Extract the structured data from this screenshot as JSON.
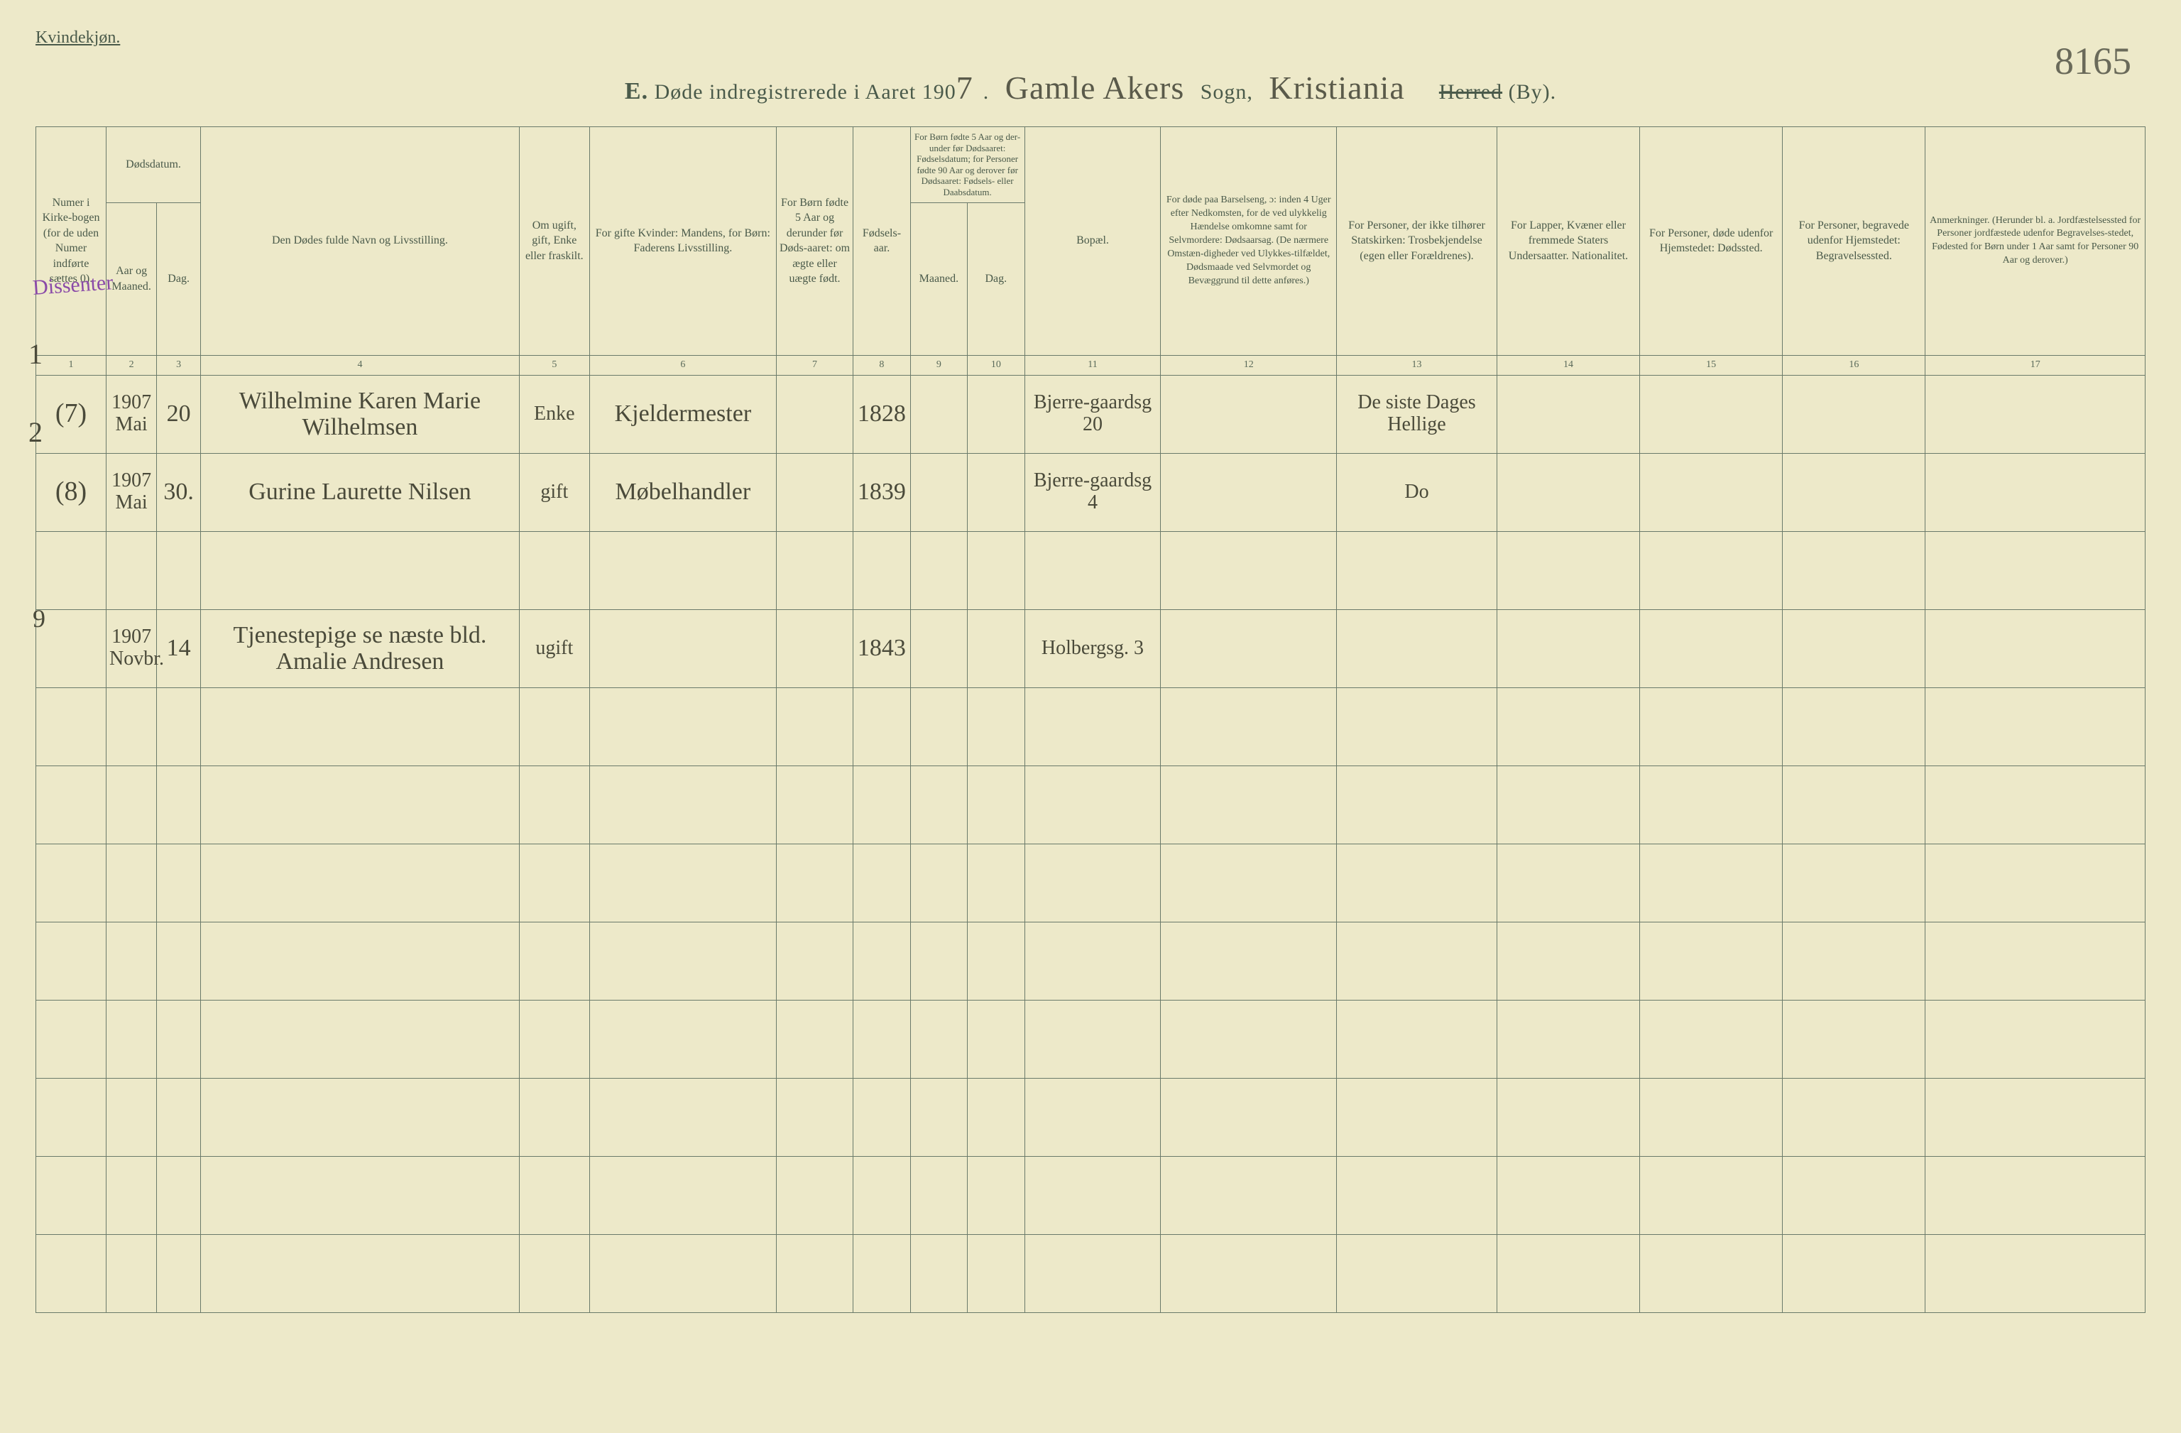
{
  "background_color": "#ede9c9",
  "ink_color": "#4a5a4a",
  "cursive_color": "#4a4a3a",
  "purple_color": "#8a4aa8",
  "top_label": "Kvindekjøn.",
  "page_number": "8165",
  "header": {
    "prefix_E": "E.",
    "title_before_year": "Døde indregistrerede i Aaret 190",
    "year_digit": "7",
    "sogn_value": "Gamle Akers",
    "sogn_label": "Sogn,",
    "herred_value": "Kristiania",
    "herred_struck": "Herred",
    "by_label": "(By)."
  },
  "margin": {
    "dissenter": "Dissenter",
    "r1": "1",
    "r2": "2",
    "r3": "9"
  },
  "columns": {
    "h1": "Numer i Kirke-bogen (for de uden Numer indførte sættes 0).",
    "h2a": "Dødsdatum.",
    "h2b": "Aar og Maaned.",
    "h3": "Dag.",
    "h4": "Den Dødes fulde Navn og Livsstilling.",
    "h5": "Om ugift, gift, Enke eller fraskilt.",
    "h6": "For gifte Kvinder: Mandens, for Børn: Faderens Livsstilling.",
    "h7": "For Børn fødte 5 Aar og derunder før Døds-aaret: om ægte eller uægte født.",
    "h8": "Fødsels-aar.",
    "h9_top": "For Børn fødte 5 Aar og der-under før Dødsaaret: Fødselsdatum; for Personer fødte 90 Aar og derover før Dødsaaret: Fødsels- eller Daabsdatum.",
    "h9": "Maaned.",
    "h10": "Dag.",
    "h11": "Bopæl.",
    "h12": "For døde paa Barselseng, ɔ: inden 4 Uger efter Nedkomsten, for de ved ulykkelig Hændelse omkomne samt for Selvmordere: Dødsaarsag. (De nærmere Omstæn-digheder ved Ulykkes-tilfældet, Dødsmaade ved Selvmordet og Bevæggrund til dette anføres.)",
    "h13": "For Personer, der ikke tilhører Statskirken: Trosbekjendelse (egen eller Forældrenes).",
    "h14": "For Lapper, Kvæner eller fremmede Staters Undersaatter. Nationalitet.",
    "h15": "For Personer, døde udenfor Hjemstedet: Dødssted.",
    "h16": "For Personer, begravede udenfor Hjemstedet: Begravelsessted.",
    "h17": "Anmerkninger. (Herunder bl. a. Jordfæstelsessted for Personer jordfæstede udenfor Begravelses-stedet, Fødested for Børn under 1 Aar samt for Personer 90 Aar og derover.)"
  },
  "colnums": [
    "1",
    "2",
    "3",
    "4",
    "5",
    "6",
    "7",
    "8",
    "9",
    "10",
    "11",
    "12",
    "13",
    "14",
    "15",
    "16",
    "17"
  ],
  "rows": [
    {
      "num": "(7)",
      "year_month": "1907 Mai",
      "day": "20",
      "name": "Wilhelmine Karen Marie Wilhelmsen",
      "status": "Enke",
      "occupation": "Kjeldermester",
      "c7": "",
      "birth": "1828",
      "c9": "",
      "c10": "",
      "residence": "Bjerre-gaardsg 20",
      "c12": "",
      "faith": "De siste Dages Hellige",
      "c14": "",
      "c15": "",
      "c16": "",
      "c17": ""
    },
    {
      "num": "(8)",
      "year_month": "1907 Mai",
      "day": "30.",
      "name": "Gurine Laurette Nilsen",
      "status": "gift",
      "occupation": "Møbelhandler",
      "c7": "",
      "birth": "1839",
      "c9": "",
      "c10": "",
      "residence": "Bjerre-gaardsg 4",
      "c12": "",
      "faith": "Do",
      "c14": "",
      "c15": "",
      "c16": "",
      "c17": ""
    },
    {
      "num": "",
      "year_month": "1907 Novbr.",
      "day": "14",
      "name": "Tjenestepige   se næste bld. Amalie Andresen",
      "status": "ugift",
      "occupation": "",
      "c7": "",
      "birth": "1843",
      "c9": "",
      "c10": "",
      "residence": "Holbergsg. 3",
      "c12": "",
      "faith": "",
      "c14": "",
      "c15": "",
      "c16": "",
      "c17": ""
    }
  ],
  "empty_rows": 8
}
